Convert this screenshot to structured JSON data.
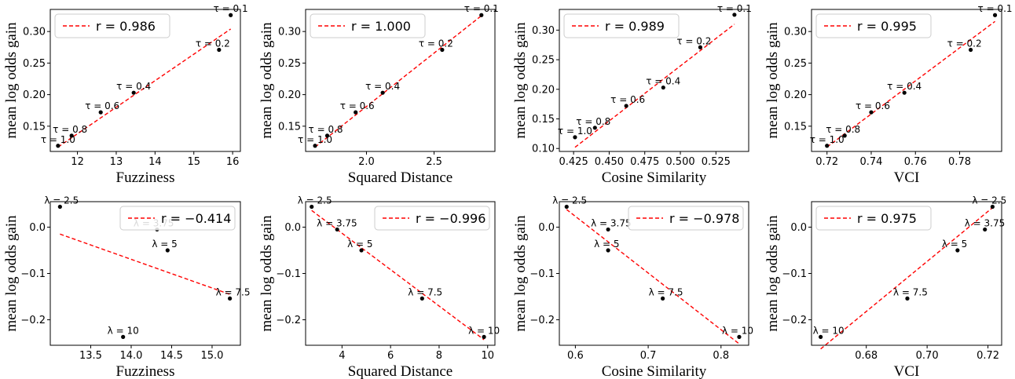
{
  "chart_data": [
    {
      "type": "scatter",
      "xlabel": "Fuzziness",
      "ylabel": "mean log odds gain",
      "xlim": [
        11.3,
        16.2
      ],
      "ylim": [
        0.11,
        0.335
      ],
      "xticks": [
        {
          "v": 12,
          "t": "12"
        },
        {
          "v": 13,
          "t": "13"
        },
        {
          "v": 14,
          "t": "14"
        },
        {
          "v": 15,
          "t": "15"
        },
        {
          "v": 16,
          "t": "16"
        }
      ],
      "yticks": [
        {
          "v": 0.15,
          "t": "0.15"
        },
        {
          "v": 0.2,
          "t": "0.20"
        },
        {
          "v": 0.25,
          "t": "0.25"
        },
        {
          "v": 0.3,
          "t": "0.30"
        }
      ],
      "points": [
        {
          "x": 15.95,
          "y": 0.326,
          "label": "τ = 0.1"
        },
        {
          "x": 15.65,
          "y": 0.271,
          "label": "τ = 0.2"
        },
        {
          "x": 13.45,
          "y": 0.203,
          "label": "τ = 0.4"
        },
        {
          "x": 12.6,
          "y": 0.172,
          "label": "τ = 0.6"
        },
        {
          "x": 11.85,
          "y": 0.135,
          "label": "τ = 0.8"
        },
        {
          "x": 11.5,
          "y": 0.119,
          "label": "τ = 1.0"
        }
      ],
      "fit": {
        "x": [
          11.5,
          15.95
        ],
        "y": [
          0.117,
          0.304
        ]
      },
      "legend": "r = 0.986",
      "legend_loc": "upper left"
    },
    {
      "type": "scatter",
      "xlabel": "Squared Distance",
      "ylabel": "mean log odds gain",
      "xlim": [
        1.55,
        2.95
      ],
      "ylim": [
        0.11,
        0.335
      ],
      "xticks": [
        {
          "v": 2.0,
          "t": "2.0"
        },
        {
          "v": 2.5,
          "t": "2.5"
        }
      ],
      "yticks": [
        {
          "v": 0.15,
          "t": "0.15"
        },
        {
          "v": 0.2,
          "t": "0.20"
        },
        {
          "v": 0.25,
          "t": "0.25"
        },
        {
          "v": 0.3,
          "t": "0.30"
        }
      ],
      "points": [
        {
          "x": 2.85,
          "y": 0.326,
          "label": "τ = 0.1"
        },
        {
          "x": 2.56,
          "y": 0.271,
          "label": "τ = 0.2"
        },
        {
          "x": 2.12,
          "y": 0.203,
          "label": "τ = 0.4"
        },
        {
          "x": 1.92,
          "y": 0.172,
          "label": "τ = 0.6"
        },
        {
          "x": 1.71,
          "y": 0.135,
          "label": "τ = 0.8"
        },
        {
          "x": 1.62,
          "y": 0.119,
          "label": "τ = 1.0"
        }
      ],
      "fit": {
        "x": [
          1.62,
          2.85
        ],
        "y": [
          0.117,
          0.325
        ]
      },
      "legend": "r = 1.000",
      "legend_loc": "upper left"
    },
    {
      "type": "scatter",
      "xlabel": "Cosine Similarity",
      "ylabel": "mean log odds gain",
      "xlim": [
        0.415,
        0.548
      ],
      "ylim": [
        0.095,
        0.335
      ],
      "xticks": [
        {
          "v": 0.425,
          "t": "0.425"
        },
        {
          "v": 0.45,
          "t": "0.450"
        },
        {
          "v": 0.475,
          "t": "0.475"
        },
        {
          "v": 0.5,
          "t": "0.500"
        },
        {
          "v": 0.525,
          "t": "0.525"
        }
      ],
      "yticks": [
        {
          "v": 0.1,
          "t": "0.10"
        },
        {
          "v": 0.15,
          "t": "0.15"
        },
        {
          "v": 0.2,
          "t": "0.20"
        },
        {
          "v": 0.25,
          "t": "0.25"
        },
        {
          "v": 0.3,
          "t": "0.30"
        }
      ],
      "points": [
        {
          "x": 0.538,
          "y": 0.326,
          "label": "τ = 0.1"
        },
        {
          "x": 0.514,
          "y": 0.271,
          "label": "τ = 0.2"
        },
        {
          "x": 0.488,
          "y": 0.203,
          "label": "τ = 0.4"
        },
        {
          "x": 0.462,
          "y": 0.172,
          "label": "τ = 0.6"
        },
        {
          "x": 0.44,
          "y": 0.135,
          "label": "τ = 0.8"
        },
        {
          "x": 0.426,
          "y": 0.119,
          "label": "τ = 1.0"
        }
      ],
      "fit": {
        "x": [
          0.426,
          0.538
        ],
        "y": [
          0.102,
          0.31
        ]
      },
      "legend": "r = 0.989",
      "legend_loc": "upper left"
    },
    {
      "type": "scatter",
      "xlabel": "VCI",
      "ylabel": "mean log odds gain",
      "xlim": [
        0.713,
        0.799
      ],
      "ylim": [
        0.11,
        0.335
      ],
      "xticks": [
        {
          "v": 0.72,
          "t": "0.72"
        },
        {
          "v": 0.74,
          "t": "0.74"
        },
        {
          "v": 0.76,
          "t": "0.76"
        },
        {
          "v": 0.78,
          "t": "0.78"
        }
      ],
      "yticks": [
        {
          "v": 0.15,
          "t": "0.15"
        },
        {
          "v": 0.2,
          "t": "0.20"
        },
        {
          "v": 0.25,
          "t": "0.25"
        },
        {
          "v": 0.3,
          "t": "0.30"
        }
      ],
      "points": [
        {
          "x": 0.796,
          "y": 0.326,
          "label": "τ = 0.1"
        },
        {
          "x": 0.785,
          "y": 0.271,
          "label": "τ = 0.2"
        },
        {
          "x": 0.755,
          "y": 0.203,
          "label": "τ = 0.4"
        },
        {
          "x": 0.74,
          "y": 0.172,
          "label": "τ = 0.6"
        },
        {
          "x": 0.728,
          "y": 0.135,
          "label": "τ = 0.8"
        },
        {
          "x": 0.72,
          "y": 0.119,
          "label": "τ = 1.0"
        }
      ],
      "fit": {
        "x": [
          0.72,
          0.796
        ],
        "y": [
          0.117,
          0.316
        ]
      },
      "legend": "r = 0.995",
      "legend_loc": "upper left"
    },
    {
      "type": "scatter",
      "xlabel": "Fuzziness",
      "ylabel": "mean log odds gain",
      "xlim": [
        13.0,
        15.35
      ],
      "ylim": [
        -0.255,
        0.055
      ],
      "xticks": [
        {
          "v": 13.5,
          "t": "13.5"
        },
        {
          "v": 14.0,
          "t": "14.0"
        },
        {
          "v": 14.5,
          "t": "14.5"
        },
        {
          "v": 15.0,
          "t": "15.0"
        }
      ],
      "yticks": [
        {
          "v": -0.2,
          "t": "−0.2"
        },
        {
          "v": -0.1,
          "t": "−0.1"
        },
        {
          "v": 0.0,
          "t": "0.0"
        }
      ],
      "points": [
        {
          "x": 13.12,
          "y": 0.044,
          "label": "λ = 2.5"
        },
        {
          "x": 14.32,
          "y": -0.005,
          "label": "λ = 3.75"
        },
        {
          "x": 14.45,
          "y": -0.05,
          "label": "λ = 5"
        },
        {
          "x": 15.22,
          "y": -0.154,
          "label": "λ = 7.5"
        },
        {
          "x": 13.9,
          "y": -0.237,
          "label": "λ = 10"
        }
      ],
      "fit": {
        "x": [
          13.12,
          15.22
        ],
        "y": [
          -0.015,
          -0.145
        ]
      },
      "legend": "r = −0.414",
      "legend_loc": "upper right"
    },
    {
      "type": "scatter",
      "xlabel": "Squared Distance",
      "ylabel": "mean log odds gain",
      "xlim": [
        2.5,
        10.3
      ],
      "ylim": [
        -0.255,
        0.055
      ],
      "xticks": [
        {
          "v": 4,
          "t": "4"
        },
        {
          "v": 6,
          "t": "6"
        },
        {
          "v": 8,
          "t": "8"
        },
        {
          "v": 10,
          "t": "10"
        }
      ],
      "yticks": [
        {
          "v": -0.2,
          "t": "−0.2"
        },
        {
          "v": -0.1,
          "t": "−0.1"
        },
        {
          "v": 0.0,
          "t": "0.0"
        }
      ],
      "points": [
        {
          "x": 2.75,
          "y": 0.044,
          "label": "λ = 2.5"
        },
        {
          "x": 3.8,
          "y": -0.005,
          "label": "λ = 3.75"
        },
        {
          "x": 4.8,
          "y": -0.05,
          "label": "λ = 5"
        },
        {
          "x": 7.3,
          "y": -0.154,
          "label": "λ = 7.5"
        },
        {
          "x": 9.85,
          "y": -0.237,
          "label": "λ = 10"
        }
      ],
      "fit": {
        "x": [
          2.75,
          9.85
        ],
        "y": [
          0.036,
          -0.243
        ]
      },
      "legend": "r = −0.996",
      "legend_loc": "upper right"
    },
    {
      "type": "scatter",
      "xlabel": "Cosine Similarity",
      "ylabel": "mean log odds gain",
      "xlim": [
        0.578,
        0.838
      ],
      "ylim": [
        -0.255,
        0.055
      ],
      "xticks": [
        {
          "v": 0.6,
          "t": "0.6"
        },
        {
          "v": 0.7,
          "t": "0.7"
        },
        {
          "v": 0.8,
          "t": "0.8"
        }
      ],
      "yticks": [
        {
          "v": -0.2,
          "t": "−0.2"
        },
        {
          "v": -0.1,
          "t": "−0.1"
        },
        {
          "v": 0.0,
          "t": "0.0"
        }
      ],
      "points": [
        {
          "x": 0.588,
          "y": 0.044,
          "label": "λ = 2.5"
        },
        {
          "x": 0.645,
          "y": -0.005,
          "label": "λ = 3.75"
        },
        {
          "x": 0.645,
          "y": -0.05,
          "label": "λ = 5"
        },
        {
          "x": 0.72,
          "y": -0.154,
          "label": "λ = 7.5"
        },
        {
          "x": 0.825,
          "y": -0.237,
          "label": "λ = 10"
        }
      ],
      "fit": {
        "x": [
          0.588,
          0.825
        ],
        "y": [
          0.038,
          -0.252
        ]
      },
      "legend": "r = −0.978",
      "legend_loc": "upper right"
    },
    {
      "type": "scatter",
      "xlabel": "VCI",
      "ylabel": "mean log odds gain",
      "xlim": [
        0.662,
        0.7245
      ],
      "ylim": [
        -0.255,
        0.055
      ],
      "xticks": [
        {
          "v": 0.68,
          "t": "0.68"
        },
        {
          "v": 0.7,
          "t": "0.70"
        },
        {
          "v": 0.72,
          "t": "0.72"
        }
      ],
      "yticks": [
        {
          "v": -0.2,
          "t": "−0.2"
        },
        {
          "v": -0.1,
          "t": "−0.1"
        },
        {
          "v": 0.0,
          "t": "0.0"
        }
      ],
      "points": [
        {
          "x": 0.7215,
          "y": 0.044,
          "label": "λ = 2.5"
        },
        {
          "x": 0.719,
          "y": -0.005,
          "label": "λ = 3.75"
        },
        {
          "x": 0.71,
          "y": -0.05,
          "label": "λ = 5"
        },
        {
          "x": 0.6935,
          "y": -0.154,
          "label": "λ = 7.5"
        },
        {
          "x": 0.665,
          "y": -0.237,
          "label": "λ = 10"
        }
      ],
      "fit": {
        "x": [
          0.665,
          0.7215
        ],
        "y": [
          -0.263,
          0.042
        ]
      },
      "legend": "r = 0.975",
      "legend_loc": "upper left"
    }
  ],
  "colors": {
    "fit_line": "#ff0000",
    "point": "#000000",
    "axis": "#000000"
  }
}
